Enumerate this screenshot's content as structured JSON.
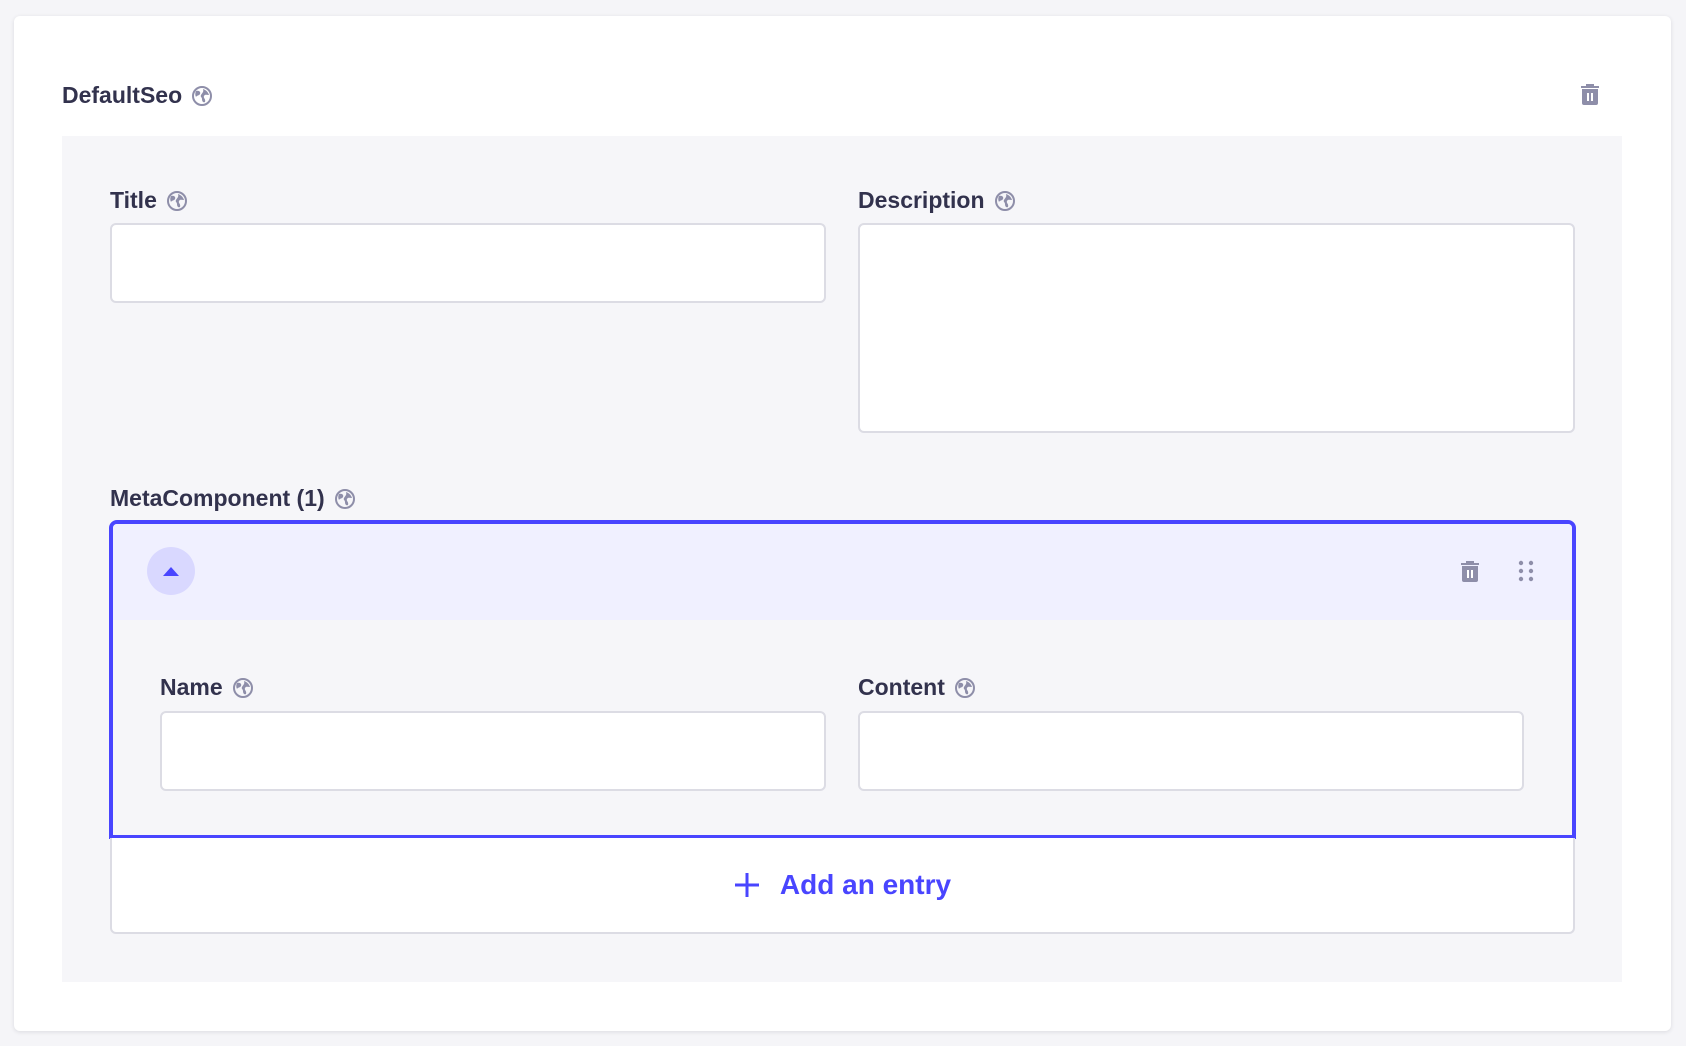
{
  "component": {
    "title": "DefaultSeo",
    "fields": {
      "title": {
        "label": "Title",
        "value": ""
      },
      "description": {
        "label": "Description",
        "value": ""
      }
    },
    "repeatable": {
      "label": "MetaComponent (1)",
      "entries": [
        {
          "name": {
            "label": "Name",
            "value": ""
          },
          "content": {
            "label": "Content",
            "value": ""
          }
        }
      ],
      "add_label": "Add an entry"
    }
  },
  "colors": {
    "accent": "#4945ff",
    "text": "#32324d",
    "icon": "#8e8ea9",
    "entry_header": "#f0f0ff"
  }
}
